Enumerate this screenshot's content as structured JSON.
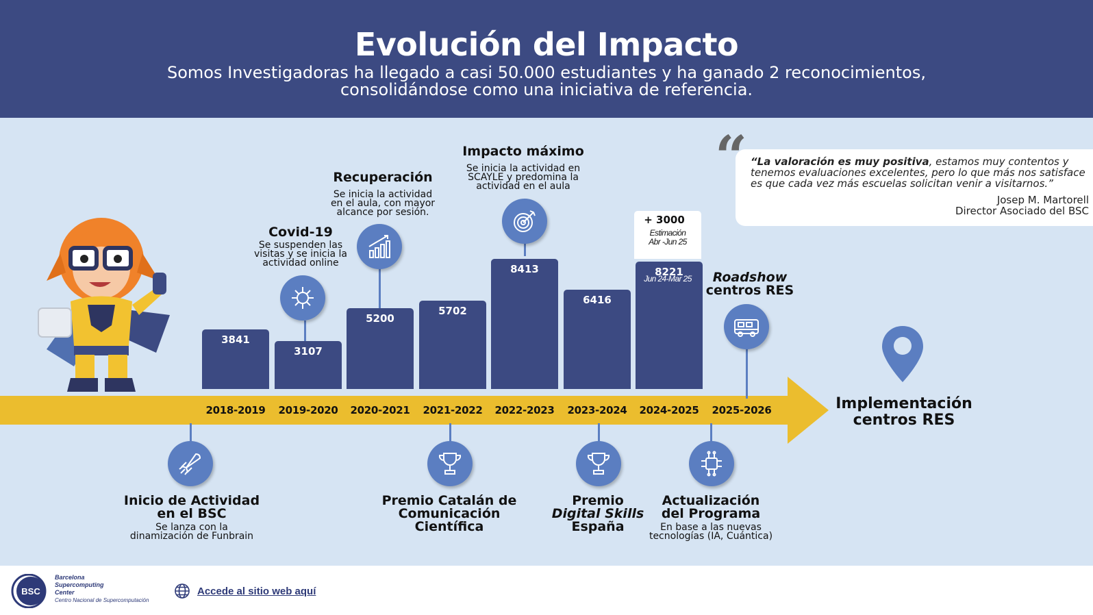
{
  "header": {
    "title": "Evolución del Impacto",
    "subtitle_line1": "Somos Investigadoras ha llegado a casi 50.000 estudiantes y ha ganado 2 reconocimientos,",
    "subtitle_line2": "consolidándose como una iniciativa de referencia."
  },
  "colors": {
    "bar": "#3c4a82",
    "arrow": "#ebbd2e",
    "circle": "#5b7ec1",
    "background": "#d6e4f3"
  },
  "chart_data": {
    "type": "bar",
    "categories": [
      "2018-2019",
      "2019-2020",
      "2020-2021",
      "2021-2022",
      "2022-2023",
      "2023-2024",
      "2024-2025",
      "2025-2026"
    ],
    "values": [
      3841,
      3107,
      5200,
      5702,
      8413,
      6416,
      8221,
      null
    ],
    "value_labels": [
      "3841",
      "3107",
      "5200",
      "5702",
      "8413",
      "6416",
      "8221",
      ""
    ],
    "estimate": {
      "label": "+ 3000",
      "note_line1": "Estimación",
      "note_line2": "Abr -Jun 25",
      "value": 3000
    },
    "last_bar_note": "Jun 24-Mar 25",
    "ylim": [
      0,
      12000
    ]
  },
  "milestones_top": [
    {
      "title": "Covid-19",
      "lines": [
        "Se suspenden las",
        "visitas y se inicia la",
        "actividad online"
      ],
      "icon": "virus-icon"
    },
    {
      "title": "Recuperación",
      "lines": [
        "Se inicia la actividad",
        "en el aula, con mayor",
        "alcance por sesión."
      ],
      "icon": "growth-chart-icon"
    },
    {
      "title": "Impacto máximo",
      "lines": [
        "Se inicia la actividad en",
        "SCAYLE y predomina la",
        "actividad en el aula"
      ],
      "icon": "target-icon"
    },
    {
      "title_italic": "Roadshow",
      "title_rest": "centros RES",
      "icon": "campervan-icon"
    }
  ],
  "milestones_bottom": [
    {
      "title_line1": "Inicio de Actividad",
      "title_line2": "en el BSC",
      "lines": [
        "Se lanza con la",
        "dinamización de Funbrain"
      ],
      "icon": "rocket-icon"
    },
    {
      "title_line1": "Premio Catalán de",
      "title_line2": "Comunicación",
      "title_line3": "Científica",
      "icon": "trophy-icon"
    },
    {
      "title_line1": "Premio",
      "title_italic": "Digital Skills",
      "title_line3": "España",
      "icon": "trophy-icon"
    },
    {
      "title_line1": "Actualización",
      "title_line2": "del Programa",
      "lines": [
        "En base a las nuevas",
        "tecnologías (IA, Cuántica)"
      ],
      "icon": "chip-icon"
    }
  ],
  "final": {
    "line1": "Implementación",
    "line2": "centros RES",
    "icon": "location-pin-icon"
  },
  "quote": {
    "bold": "“La valoración es muy positiva",
    "rest": ", estamos muy contentos y tenemos evaluaciones excelentes, pero lo que más nos satisface es que cada vez más escuelas solicitan venir a visitarnos.”",
    "author": "Josep M. Martorell",
    "role": "Director Asociado del BSC"
  },
  "footer": {
    "logo_mark": "BSC",
    "logo_line1": "Barcelona",
    "logo_line2": "Supercomputing",
    "logo_line3": "Center",
    "logo_line4": "Centro Nacional de Supercomputación",
    "link": "Accede al sitio web aquí"
  }
}
